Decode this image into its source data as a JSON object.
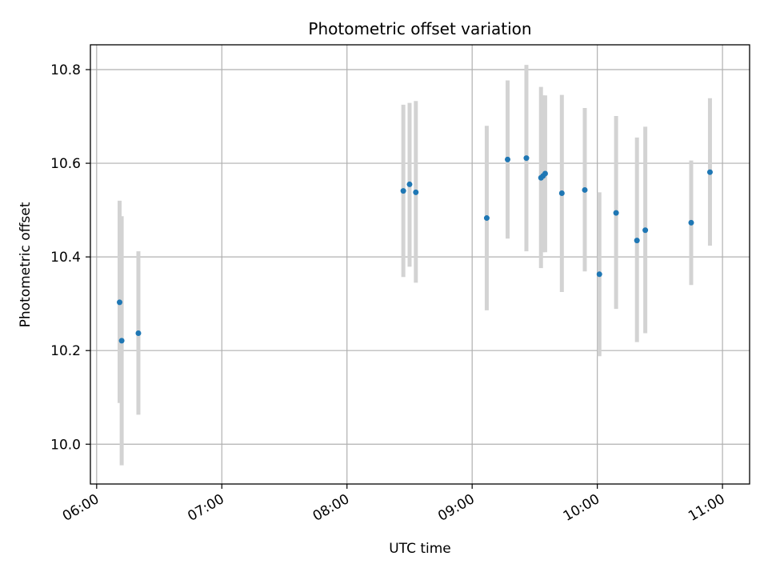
{
  "chart_data": {
    "type": "scatter",
    "title": "Photometric offset variation",
    "xlabel": "UTC time",
    "ylabel": "Photometric offset",
    "xlim": [
      "05:57",
      "11:13"
    ],
    "ylim": [
      9.915,
      10.853
    ],
    "x_ticks": [
      "06:00",
      "07:00",
      "08:00",
      "09:00",
      "10:00",
      "11:00"
    ],
    "y_ticks": [
      "10.0",
      "10.2",
      "10.4",
      "10.6",
      "10.8"
    ],
    "grid": true,
    "legend": "none",
    "colors": {
      "point": "#1f77b4",
      "errorbar": "#d3d3d3",
      "grid": "#b0b0b0"
    },
    "points": [
      {
        "x": "06:11",
        "y": 10.303,
        "err_low": 10.088,
        "err_high": 10.52
      },
      {
        "x": "06:12",
        "y": 10.221,
        "err_low": 9.955,
        "err_high": 10.487
      },
      {
        "x": "06:20",
        "y": 10.237,
        "err_low": 10.063,
        "err_high": 10.412
      },
      {
        "x": "08:27",
        "y": 10.541,
        "err_low": 10.357,
        "err_high": 10.725
      },
      {
        "x": "08:30",
        "y": 10.555,
        "err_low": 10.379,
        "err_high": 10.729
      },
      {
        "x": "08:33",
        "y": 10.538,
        "err_low": 10.345,
        "err_high": 10.733
      },
      {
        "x": "09:07",
        "y": 10.483,
        "err_low": 10.286,
        "err_high": 10.68
      },
      {
        "x": "09:17",
        "y": 10.608,
        "err_low": 10.439,
        "err_high": 10.777
      },
      {
        "x": "09:26",
        "y": 10.611,
        "err_low": 10.412,
        "err_high": 10.81
      },
      {
        "x": "09:33",
        "y": 10.569,
        "err_low": 10.376,
        "err_high": 10.763
      },
      {
        "x": "09:34",
        "y": 10.573,
        "err_low": 10.41,
        "err_high": 10.745
      },
      {
        "x": "09:35",
        "y": 10.578,
        "err_low": 10.41,
        "err_high": 10.745
      },
      {
        "x": "09:43",
        "y": 10.536,
        "err_low": 10.325,
        "err_high": 10.746
      },
      {
        "x": "09:54",
        "y": 10.543,
        "err_low": 10.369,
        "err_high": 10.718
      },
      {
        "x": "10:01",
        "y": 10.363,
        "err_low": 10.188,
        "err_high": 10.538
      },
      {
        "x": "10:09",
        "y": 10.494,
        "err_low": 10.289,
        "err_high": 10.701
      },
      {
        "x": "10:19",
        "y": 10.435,
        "err_low": 10.218,
        "err_high": 10.655
      },
      {
        "x": "10:23",
        "y": 10.457,
        "err_low": 10.237,
        "err_high": 10.678
      },
      {
        "x": "10:45",
        "y": 10.473,
        "err_low": 10.34,
        "err_high": 10.606
      },
      {
        "x": "10:54",
        "y": 10.581,
        "err_low": 10.424,
        "err_high": 10.739
      }
    ]
  }
}
